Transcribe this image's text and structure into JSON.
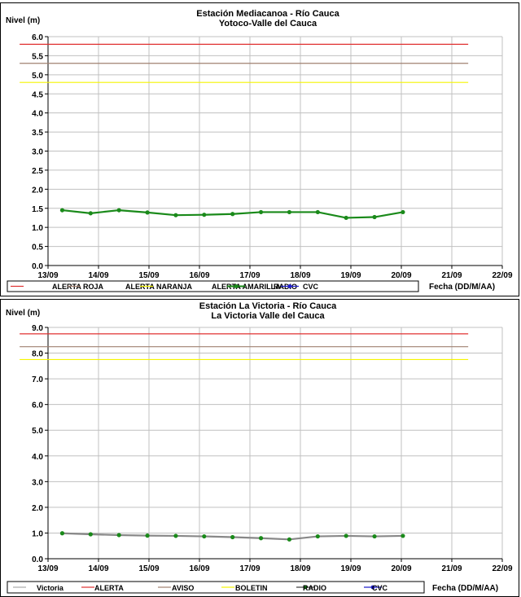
{
  "chart_data": [
    {
      "type": "line",
      "title": "Estación Mediacanoa - Río Cauca",
      "subtitle": "Yotoco-Valle del Cauca",
      "ylabel": "Nivel (m)",
      "xlabel": "Fecha (DD/M/AA)",
      "ylim": [
        0,
        6
      ],
      "ytick_step": 0.5,
      "ytick_decimals": 1,
      "xlim": [
        0,
        8
      ],
      "xtick_labels": [
        "13/09",
        "14/09",
        "15/09",
        "16/09",
        "17/09",
        "18/09",
        "19/09",
        "20/09",
        "21/09",
        "22/09"
      ],
      "grid": true,
      "legend_placement": "bottom",
      "series": [
        {
          "name": "ALERTA ROJA",
          "color": "#e03030",
          "marker": false,
          "values": [
            [
              -0.5,
              5.8
            ],
            [
              7.4,
              5.8
            ]
          ]
        },
        {
          "name": "ALERTA NARANJA",
          "color": "#a08070",
          "marker": false,
          "values": [
            [
              -0.5,
              5.3
            ],
            [
              7.4,
              5.3
            ]
          ]
        },
        {
          "name": "ALERTA AMARILLA",
          "color": "#f5f500",
          "marker": false,
          "values": [
            [
              -0.5,
              4.8
            ],
            [
              7.4,
              4.8
            ]
          ]
        },
        {
          "name": "RADIO",
          "color": "#1a8a1a",
          "marker": true,
          "marker_color": "#1a8a1a",
          "width": 2.2,
          "values": [
            [
              0.25,
              1.45
            ],
            [
              0.75,
              1.37
            ],
            [
              1.25,
              1.45
            ],
            [
              1.75,
              1.39
            ],
            [
              2.25,
              1.32
            ],
            [
              2.75,
              1.33
            ],
            [
              3.25,
              1.35
            ],
            [
              3.75,
              1.4
            ],
            [
              4.25,
              1.4
            ],
            [
              4.75,
              1.4
            ],
            [
              5.25,
              1.25
            ],
            [
              5.75,
              1.27
            ],
            [
              6.25,
              1.4
            ]
          ]
        },
        {
          "name": "CVC",
          "color": "#2020cc",
          "marker": true,
          "marker_color": "#2020cc",
          "legend_only": true,
          "values": []
        }
      ]
    },
    {
      "type": "line",
      "title": "Estación La Victoria - Río Cauca",
      "subtitle": "La Victoria Valle del Cauca",
      "ylabel": "Nivel (m)",
      "xlabel": "Fecha (DD/M/AA)",
      "ylim": [
        0,
        9
      ],
      "ytick_step": 1,
      "ytick_decimals": 1,
      "xlim": [
        0,
        8
      ],
      "xtick_labels": [
        "13/09",
        "14/09",
        "15/09",
        "16/09",
        "17/09",
        "18/09",
        "19/09",
        "20/09",
        "21/09",
        "22/09"
      ],
      "grid": true,
      "legend_placement": "bottom",
      "series": [
        {
          "name": "Victoria",
          "color": "#aaaaaa",
          "marker": false,
          "legend_only": true,
          "values": []
        },
        {
          "name": "ALERTA",
          "color": "#e03030",
          "marker": false,
          "values": [
            [
              -0.5,
              8.75
            ],
            [
              7.4,
              8.75
            ]
          ]
        },
        {
          "name": "AVISO",
          "color": "#a08070",
          "marker": false,
          "values": [
            [
              -0.5,
              8.25
            ],
            [
              7.4,
              8.25
            ]
          ]
        },
        {
          "name": "BOLETIN",
          "color": "#f5f500",
          "marker": false,
          "values": [
            [
              -0.5,
              7.75
            ],
            [
              7.4,
              7.75
            ]
          ]
        },
        {
          "name": "RADIO",
          "color": "#888888",
          "marker": true,
          "marker_color": "#1a8a1a",
          "width": 2.2,
          "values": [
            [
              0.25,
              0.99
            ],
            [
              0.75,
              0.95
            ],
            [
              1.25,
              0.92
            ],
            [
              1.75,
              0.9
            ],
            [
              2.25,
              0.89
            ],
            [
              2.75,
              0.87
            ],
            [
              3.25,
              0.84
            ],
            [
              3.75,
              0.8
            ],
            [
              4.25,
              0.75
            ],
            [
              4.75,
              0.87
            ],
            [
              5.25,
              0.89
            ],
            [
              5.75,
              0.87
            ],
            [
              6.25,
              0.89
            ]
          ]
        },
        {
          "name": "CVC",
          "color": "#2020cc",
          "marker": true,
          "marker_color": "#2020cc",
          "legend_only": true,
          "values": []
        }
      ]
    }
  ]
}
